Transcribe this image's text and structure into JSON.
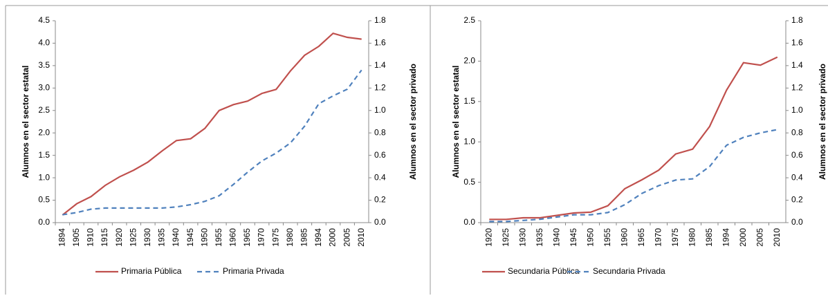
{
  "chart_data": [
    {
      "type": "line",
      "y_label": "Alumnos en el sector estatal",
      "y2_label": "Alumnos en el sector privado",
      "categories": [
        "1894",
        "1905",
        "1910",
        "1915",
        "1920",
        "1925",
        "1930",
        "1935",
        "1940",
        "1945",
        "1950",
        "1955",
        "1960",
        "1965",
        "1970",
        "1975",
        "1980",
        "1985",
        "1994",
        "2000",
        "2005",
        "2010"
      ],
      "series": [
        {
          "name": "Primaria Pública",
          "color": "#c0504d",
          "dash": false,
          "values": [
            0.17,
            0.42,
            0.58,
            0.83,
            1.02,
            1.17,
            1.35,
            1.6,
            1.83,
            1.87,
            2.1,
            2.5,
            2.63,
            2.71,
            2.88,
            2.97,
            3.38,
            3.73,
            3.93,
            4.22,
            4.13,
            4.09
          ]
        },
        {
          "name": "Primaria Privada",
          "color": "#4f81bd",
          "dash": true,
          "axis": "y2",
          "values": [
            0.07,
            0.09,
            0.12,
            0.13,
            0.13,
            0.13,
            0.13,
            0.13,
            0.14,
            0.16,
            0.19,
            0.24,
            0.34,
            0.45,
            0.55,
            0.62,
            0.71,
            0.86,
            1.06,
            1.13,
            1.19,
            1.36
          ]
        }
      ],
      "ylim": [
        0,
        4.5
      ],
      "yticks": [
        {
          "value": 0,
          "label": "0.0"
        },
        0.5,
        {
          "value": 1,
          "label": "1.0"
        },
        1.5,
        {
          "value": 2,
          "label": "2.0"
        },
        2.5,
        {
          "value": 3,
          "label": "3.0"
        },
        3.5,
        {
          "value": 4,
          "label": "4.0"
        },
        4.5
      ],
      "y2lim": [
        0,
        1.8
      ],
      "y2ticks": [
        {
          "value": 0,
          "label": "0.0"
        },
        0.2,
        0.4,
        0.6,
        0.8,
        {
          "value": 1,
          "label": "1.0"
        },
        1.2,
        1.4,
        1.6,
        1.8
      ],
      "legend": "bottom"
    },
    {
      "type": "line",
      "y_label": "Alumnos en el sector estatal",
      "y2_label": "Alumnos en el sector privado",
      "categories": [
        "1920",
        "1925",
        "1930",
        "1935",
        "1940",
        "1945",
        "1950",
        "1955",
        "1960",
        "1965",
        "1970",
        "1975",
        "1980",
        "1985",
        "1994",
        "2000",
        "2005",
        "2010"
      ],
      "series": [
        {
          "name": "Secundaria Pública",
          "color": "#c0504d",
          "dash": false,
          "values": [
            0.04,
            0.04,
            0.06,
            0.06,
            0.09,
            0.12,
            0.13,
            0.21,
            0.42,
            0.53,
            0.65,
            0.85,
            0.91,
            1.19,
            1.64,
            1.98,
            1.95,
            2.05
          ]
        },
        {
          "name": "Secundaria Privada",
          "color": "#4f81bd",
          "dash": true,
          "axis": "y2",
          "values": [
            0.01,
            0.01,
            0.02,
            0.03,
            0.05,
            0.07,
            0.07,
            0.09,
            0.16,
            0.26,
            0.33,
            0.38,
            0.39,
            0.5,
            0.69,
            0.76,
            0.8,
            0.83
          ]
        }
      ],
      "ylim": [
        0,
        2.5
      ],
      "yticks": [
        {
          "value": 0,
          "label": "0.0"
        },
        0.5,
        {
          "value": 1,
          "label": "1.0"
        },
        1.5,
        {
          "value": 2,
          "label": "2.0"
        },
        2.5
      ],
      "y2lim": [
        0,
        1.8
      ],
      "y2ticks": [
        {
          "value": 0,
          "label": "0.0"
        },
        0.2,
        0.4,
        0.6,
        0.8,
        {
          "value": 1,
          "label": "1.0"
        },
        1.2,
        1.4,
        1.6,
        1.8
      ],
      "legend": "bottom"
    }
  ]
}
